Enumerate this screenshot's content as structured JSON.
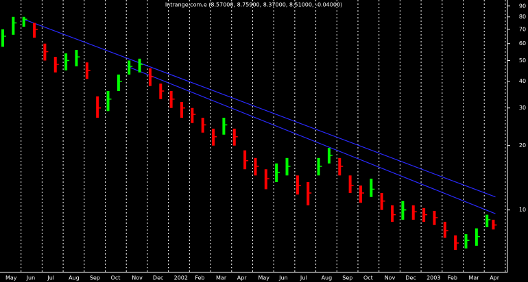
{
  "chart_data": {
    "type": "range-bar",
    "title": "Intrange.com.e (8.57000, 8.75900, 8.37000, 8.51000, -0.04000)",
    "categories": [
      "May",
      "Jun",
      "Jul",
      "Aug",
      "Sep",
      "Oct",
      "Nov",
      "Dec",
      "2002",
      "Feb",
      "Mar",
      "Apr",
      "May",
      "Jun",
      "Jul",
      "Aug",
      "Sep",
      "Oct",
      "Nov",
      "Dec",
      "2003",
      "Feb",
      "Mar",
      "Apr"
    ],
    "xlim": [
      -0.13,
      23.97
    ],
    "log_y": true,
    "ylim": [
      5.1,
      96
    ],
    "yticks": [
      10,
      20,
      30,
      40,
      50,
      60,
      70,
      80,
      90
    ],
    "grid": true,
    "up_color": "#00ff00",
    "down_color": "#ff0000",
    "trend_color": "#2a2aff",
    "prices": {
      "x": [
        0,
        0.5,
        1,
        1.5,
        2,
        2.5,
        3,
        3.5,
        4,
        4.5,
        5,
        5.5,
        6,
        6.5,
        7,
        7.5,
        8,
        8.5,
        9,
        9.5,
        10,
        10.5,
        11,
        11.5,
        12,
        12.5,
        13,
        13.5,
        14,
        14.5,
        15,
        15.5,
        16,
        16.5,
        17,
        17.5,
        18,
        18.5,
        19,
        19.5,
        20,
        20.5,
        21,
        21.5,
        22,
        22.5,
        23,
        23.3
      ],
      "high": [
        70,
        80,
        80,
        75,
        60,
        52,
        54,
        56,
        49,
        34,
        36,
        43,
        50,
        51,
        46,
        39,
        36,
        32,
        30,
        27,
        24,
        27,
        24,
        19,
        17.5,
        15.5,
        16.5,
        17.5,
        14.5,
        13.5,
        17.5,
        19.5,
        17.5,
        14.5,
        13,
        14,
        12,
        10.5,
        11,
        10.5,
        10.2,
        9.9,
        8.8,
        7.6,
        7.7,
        8.2,
        9.5,
        9
      ],
      "low": [
        58,
        66,
        72,
        64,
        50,
        44,
        45,
        47,
        41,
        27,
        29,
        36,
        43,
        44,
        38,
        33,
        30,
        27,
        25.5,
        23,
        20,
        22.5,
        20,
        15.5,
        14.5,
        12.5,
        13.5,
        14.5,
        11.8,
        10.5,
        14.5,
        16.5,
        14.5,
        12,
        10.8,
        11.5,
        10,
        8.8,
        9,
        9,
        8.8,
        8.5,
        7.4,
        6.5,
        6.6,
        6.8,
        8.3,
        8.1
      ],
      "close": [
        65,
        75,
        78,
        70,
        55,
        48,
        50,
        52,
        45,
        30,
        33,
        40,
        47,
        48,
        42,
        36,
        33,
        30,
        28,
        25,
        22,
        25,
        22,
        17,
        16,
        14,
        15,
        16,
        13,
        12,
        16,
        18,
        16,
        13,
        12,
        12.5,
        11,
        9.5,
        10,
        9.8,
        9.5,
        9.2,
        8,
        7,
        7.2,
        7.5,
        9,
        8.5
      ]
    },
    "trendlines": [
      {
        "x": [
          1,
          23.4
        ],
        "y": [
          78,
          11.5
        ]
      },
      {
        "x": [
          5.9,
          23.4
        ],
        "y": [
          47,
          9.6
        ]
      }
    ]
  }
}
